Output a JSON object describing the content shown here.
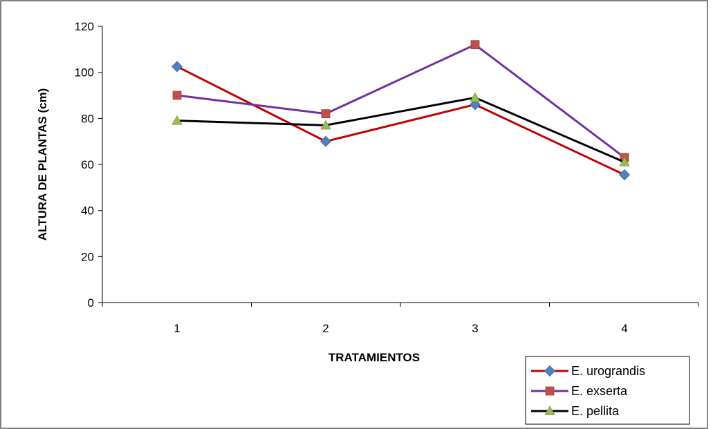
{
  "chart_data": {
    "type": "line",
    "title": "",
    "xlabel": "TRATAMIENTOS",
    "ylabel": "ALTURA DE PLANTAS (cm)",
    "x": [
      1,
      2,
      3,
      4
    ],
    "categories": [
      "1",
      "2",
      "3",
      "4"
    ],
    "ylim": [
      0,
      120
    ],
    "yticks": [
      0,
      20,
      40,
      60,
      80,
      100,
      120
    ],
    "grid": false,
    "legend_position": "bottom-right",
    "series": [
      {
        "name": "E. urograndis",
        "values": [
          102.5,
          70,
          86,
          55.5
        ],
        "color": "#C00000",
        "marker": "diamond",
        "marker_color": "#4F81BD"
      },
      {
        "name": "E. exserta",
        "values": [
          90,
          82,
          112,
          63
        ],
        "color": "#7030A0",
        "marker": "square",
        "marker_color": "#C0504D"
      },
      {
        "name": "E. pellita",
        "values": [
          79,
          77,
          89,
          61
        ],
        "color": "#000000",
        "marker": "triangle",
        "marker_color": "#9BBB59"
      }
    ]
  }
}
